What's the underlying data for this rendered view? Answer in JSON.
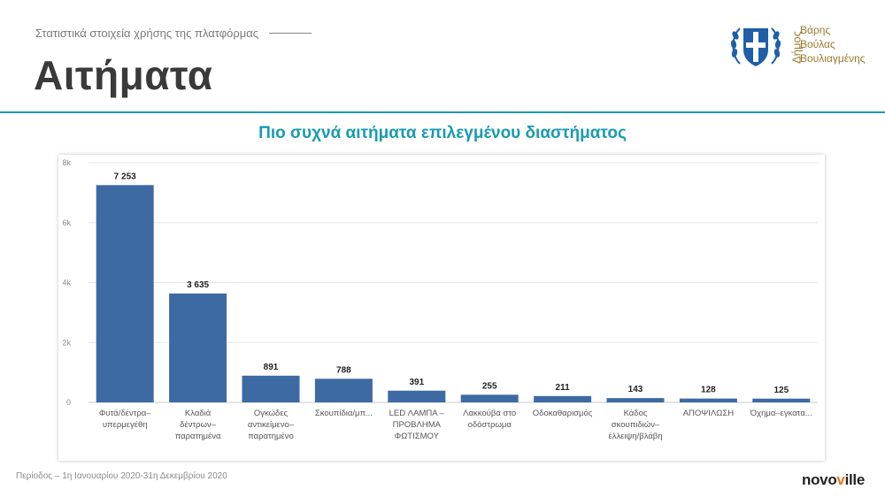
{
  "header": {
    "subtitle": "Στατιστικά στοιχεία χρήσης της πλατφόρμας",
    "title": "Αιτήματα"
  },
  "logo": {
    "vertical_word": "Δήμος",
    "lines": [
      "Βάρης",
      "Βούλας",
      "Βουλιαγμένης"
    ]
  },
  "chart_heading": "Πιο συχνά αιτήματα επιλεγμένου διαστήματος",
  "colors": {
    "accent": "#1a9bb0",
    "bar": "#3d6aa3",
    "grid": "#e6e6e6",
    "logo_gold": "#9a7a2e",
    "logo_blue": "#1f5fa8"
  },
  "chart_data": {
    "type": "bar",
    "title": "Πιο συχνά αιτήματα επιλεγμένου διαστήματος",
    "categories": [
      [
        "Φυτά/δέντρα–",
        "υπερμεγέθη"
      ],
      [
        "Κλαδιά",
        "δέντρων–",
        "παρατημένα"
      ],
      [
        "Ογκώδες",
        "αντικείμενο–",
        "παρατημένο"
      ],
      [
        "Σκουπίδια/μπ..."
      ],
      [
        "LED ΛΑΜΠΑ –",
        "ΠΡΟΒΛΗΜΑ",
        "ΦΩΤΙΣΜΟΥ"
      ],
      [
        "Λακκούβα στο",
        "οδόστρωμα"
      ],
      [
        "Οδοκαθαρισμός"
      ],
      [
        "Κάδος",
        "σκουπιδιών–",
        "έλλειψη/βλάβη"
      ],
      [
        "ΑΠΟΨΙΛΩΣΗ"
      ],
      [
        "Όχημα–εγκατα..."
      ]
    ],
    "values": [
      7253,
      3635,
      891,
      788,
      391,
      255,
      211,
      143,
      128,
      125
    ],
    "value_labels": [
      "7 253",
      "3 635",
      "891",
      "788",
      "391",
      "255",
      "211",
      "143",
      "128",
      "125"
    ],
    "ylim": [
      0,
      8000
    ],
    "yticks": [
      0,
      2000,
      4000,
      6000,
      8000
    ],
    "ytick_labels": [
      "0",
      "2k",
      "4k",
      "6k",
      "8k"
    ],
    "xlabel": "",
    "ylabel": "",
    "grid": true,
    "legend": "none"
  },
  "footer": {
    "period": "Περίοδος – 1η Ιανουαρίου 2020-31η Δεκεμβρίου 2020",
    "brand_part1": "novo",
    "brand_accent": "v",
    "brand_part2": "ille"
  }
}
